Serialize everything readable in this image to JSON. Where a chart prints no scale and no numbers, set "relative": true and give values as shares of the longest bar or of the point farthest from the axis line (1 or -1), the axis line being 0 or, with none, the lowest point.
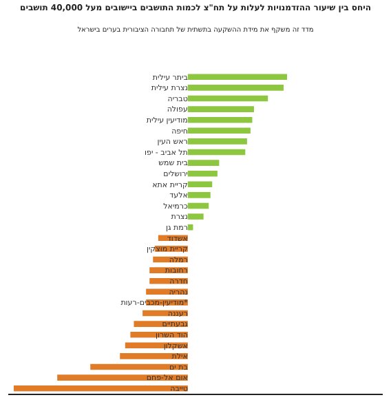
{
  "chart_data": {
    "type": "bar",
    "orientation": "horizontal",
    "relative": true,
    "title": "היחס בין שיעור ההזדמנויות לעלות על תח\"צ לכמות התושבים ביישובים מעל 40,000 תושבים",
    "subtitle": "מדד זה משקף את מידת ההשקעה בתשתית של תחבורה הציבורית בערים בישראל",
    "categories": [
      "ביתר עילית",
      "נצרת עילית",
      "טבריה",
      "עפולה",
      "מודיעין עילית",
      "חיפה",
      "ראש העין",
      "תל אביב - יפו",
      "בית שמש",
      "ירושלים",
      "קריית אתא",
      "אלעד",
      "כרמיאל",
      "נצרת",
      "רמת גן",
      "אשדוד",
      "קריית מוצקין",
      "רמלה",
      "רחובות",
      "חדרה",
      "נהריה",
      "מודיעין-מכבים-רעות*",
      "רעננה",
      "גבעתיים",
      "הוד השרון",
      "אשקלון",
      "אילת",
      "בת ים",
      "אום אל-פחם",
      "טייבה"
    ],
    "values": [
      0.57,
      0.55,
      0.46,
      0.38,
      0.37,
      0.36,
      0.34,
      0.33,
      0.18,
      0.17,
      0.14,
      0.13,
      0.12,
      0.09,
      0.03,
      -0.17,
      -0.19,
      -0.2,
      -0.22,
      -0.22,
      -0.24,
      -0.24,
      -0.26,
      -0.31,
      -0.33,
      -0.36,
      -0.39,
      -0.56,
      -0.75,
      -1
    ],
    "colors": [
      "#8dc63f",
      "#8dc63f",
      "#8dc63f",
      "#8dc63f",
      "#8dc63f",
      "#8dc63f",
      "#8dc63f",
      "#8dc63f",
      "#8dc63f",
      "#8dc63f",
      "#8dc63f",
      "#8dc63f",
      "#8dc63f",
      "#8dc63f",
      "#8dc63f",
      "#e07b28",
      "#e07b28",
      "#e07b28",
      "#e07b28",
      "#e07b28",
      "#e07b28",
      "#e07b28",
      "#e07b28",
      "#e07b28",
      "#e07b28",
      "#e07b28",
      "#e07b28",
      "#e07b28",
      "#e07b28",
      "#e07b28"
    ],
    "legend": false
  }
}
